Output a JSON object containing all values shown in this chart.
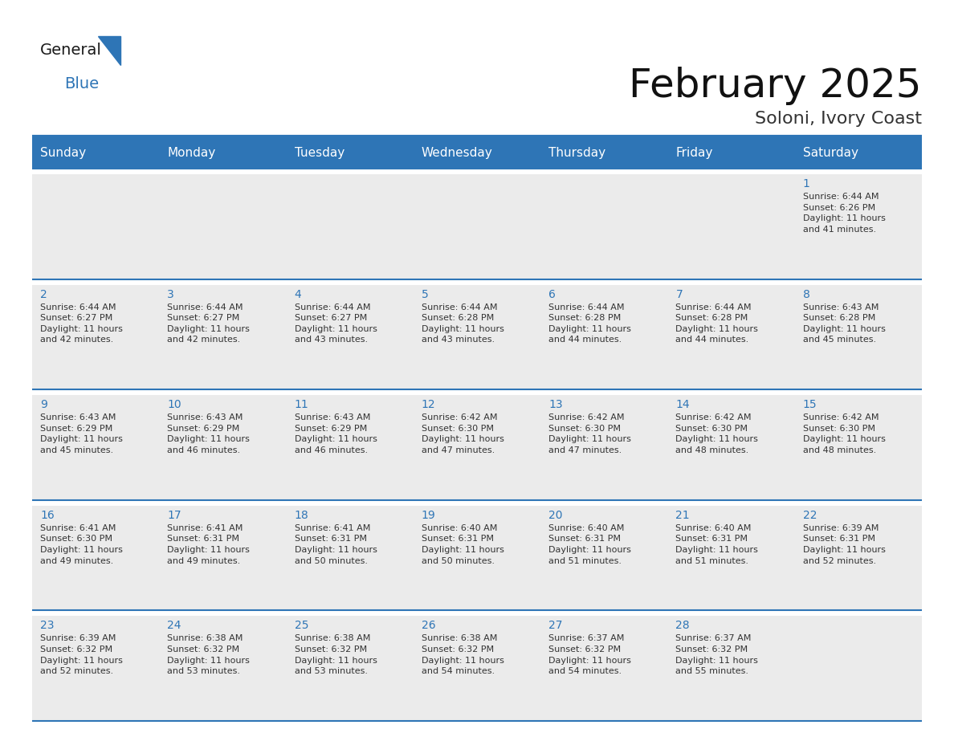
{
  "title": "February 2025",
  "subtitle": "Soloni, Ivory Coast",
  "header_bg": "#2E75B6",
  "header_text_color": "#FFFFFF",
  "cell_bg": "#EBEBEB",
  "day_number_color": "#2E75B6",
  "text_color": "#333333",
  "line_color": "#2E75B6",
  "separator_color": "#2E75B6",
  "outer_bg": "#FFFFFF",
  "days_of_week": [
    "Sunday",
    "Monday",
    "Tuesday",
    "Wednesday",
    "Thursday",
    "Friday",
    "Saturday"
  ],
  "weeks": [
    [
      {
        "day": "",
        "info": ""
      },
      {
        "day": "",
        "info": ""
      },
      {
        "day": "",
        "info": ""
      },
      {
        "day": "",
        "info": ""
      },
      {
        "day": "",
        "info": ""
      },
      {
        "day": "",
        "info": ""
      },
      {
        "day": "1",
        "info": "Sunrise: 6:44 AM\nSunset: 6:26 PM\nDaylight: 11 hours\nand 41 minutes."
      }
    ],
    [
      {
        "day": "2",
        "info": "Sunrise: 6:44 AM\nSunset: 6:27 PM\nDaylight: 11 hours\nand 42 minutes."
      },
      {
        "day": "3",
        "info": "Sunrise: 6:44 AM\nSunset: 6:27 PM\nDaylight: 11 hours\nand 42 minutes."
      },
      {
        "day": "4",
        "info": "Sunrise: 6:44 AM\nSunset: 6:27 PM\nDaylight: 11 hours\nand 43 minutes."
      },
      {
        "day": "5",
        "info": "Sunrise: 6:44 AM\nSunset: 6:28 PM\nDaylight: 11 hours\nand 43 minutes."
      },
      {
        "day": "6",
        "info": "Sunrise: 6:44 AM\nSunset: 6:28 PM\nDaylight: 11 hours\nand 44 minutes."
      },
      {
        "day": "7",
        "info": "Sunrise: 6:44 AM\nSunset: 6:28 PM\nDaylight: 11 hours\nand 44 minutes."
      },
      {
        "day": "8",
        "info": "Sunrise: 6:43 AM\nSunset: 6:28 PM\nDaylight: 11 hours\nand 45 minutes."
      }
    ],
    [
      {
        "day": "9",
        "info": "Sunrise: 6:43 AM\nSunset: 6:29 PM\nDaylight: 11 hours\nand 45 minutes."
      },
      {
        "day": "10",
        "info": "Sunrise: 6:43 AM\nSunset: 6:29 PM\nDaylight: 11 hours\nand 46 minutes."
      },
      {
        "day": "11",
        "info": "Sunrise: 6:43 AM\nSunset: 6:29 PM\nDaylight: 11 hours\nand 46 minutes."
      },
      {
        "day": "12",
        "info": "Sunrise: 6:42 AM\nSunset: 6:30 PM\nDaylight: 11 hours\nand 47 minutes."
      },
      {
        "day": "13",
        "info": "Sunrise: 6:42 AM\nSunset: 6:30 PM\nDaylight: 11 hours\nand 47 minutes."
      },
      {
        "day": "14",
        "info": "Sunrise: 6:42 AM\nSunset: 6:30 PM\nDaylight: 11 hours\nand 48 minutes."
      },
      {
        "day": "15",
        "info": "Sunrise: 6:42 AM\nSunset: 6:30 PM\nDaylight: 11 hours\nand 48 minutes."
      }
    ],
    [
      {
        "day": "16",
        "info": "Sunrise: 6:41 AM\nSunset: 6:30 PM\nDaylight: 11 hours\nand 49 minutes."
      },
      {
        "day": "17",
        "info": "Sunrise: 6:41 AM\nSunset: 6:31 PM\nDaylight: 11 hours\nand 49 minutes."
      },
      {
        "day": "18",
        "info": "Sunrise: 6:41 AM\nSunset: 6:31 PM\nDaylight: 11 hours\nand 50 minutes."
      },
      {
        "day": "19",
        "info": "Sunrise: 6:40 AM\nSunset: 6:31 PM\nDaylight: 11 hours\nand 50 minutes."
      },
      {
        "day": "20",
        "info": "Sunrise: 6:40 AM\nSunset: 6:31 PM\nDaylight: 11 hours\nand 51 minutes."
      },
      {
        "day": "21",
        "info": "Sunrise: 6:40 AM\nSunset: 6:31 PM\nDaylight: 11 hours\nand 51 minutes."
      },
      {
        "day": "22",
        "info": "Sunrise: 6:39 AM\nSunset: 6:31 PM\nDaylight: 11 hours\nand 52 minutes."
      }
    ],
    [
      {
        "day": "23",
        "info": "Sunrise: 6:39 AM\nSunset: 6:32 PM\nDaylight: 11 hours\nand 52 minutes."
      },
      {
        "day": "24",
        "info": "Sunrise: 6:38 AM\nSunset: 6:32 PM\nDaylight: 11 hours\nand 53 minutes."
      },
      {
        "day": "25",
        "info": "Sunrise: 6:38 AM\nSunset: 6:32 PM\nDaylight: 11 hours\nand 53 minutes."
      },
      {
        "day": "26",
        "info": "Sunrise: 6:38 AM\nSunset: 6:32 PM\nDaylight: 11 hours\nand 54 minutes."
      },
      {
        "day": "27",
        "info": "Sunrise: 6:37 AM\nSunset: 6:32 PM\nDaylight: 11 hours\nand 54 minutes."
      },
      {
        "day": "28",
        "info": "Sunrise: 6:37 AM\nSunset: 6:32 PM\nDaylight: 11 hours\nand 55 minutes."
      },
      {
        "day": "",
        "info": ""
      }
    ]
  ],
  "logo_text1": "General",
  "logo_text2": "Blue",
  "logo_color1": "#1A1A1A",
  "logo_color2": "#2E75B6",
  "logo_triangle_color": "#2E75B6",
  "title_fontsize": 36,
  "subtitle_fontsize": 16,
  "header_fontsize": 11,
  "day_num_fontsize": 10,
  "info_fontsize": 8
}
